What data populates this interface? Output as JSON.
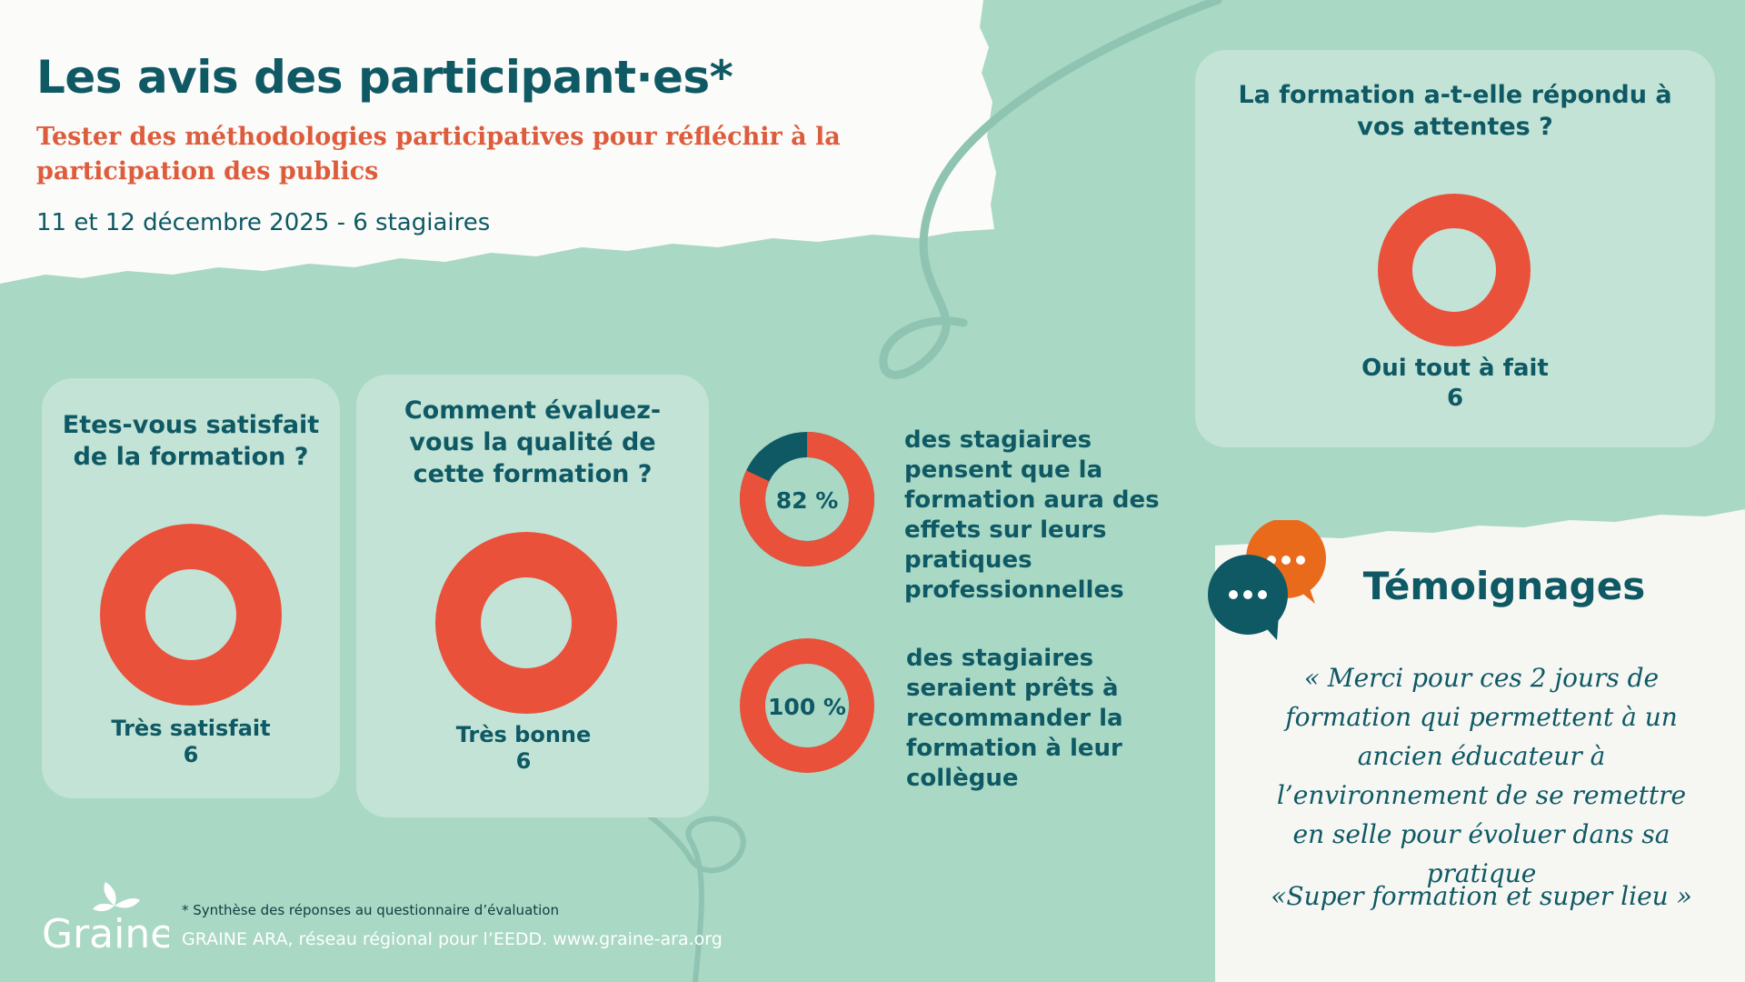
{
  "header": {
    "title": "Les avis des participant·es*",
    "subtitle": "Tester des méthodologies participatives pour réfléchir à la participation des publics",
    "session": "11 et 12 décembre 2025 - 6 stagiaires"
  },
  "chart_data": [
    {
      "type": "pie",
      "title": "Etes-vous satisfait de la formation ?",
      "categories": [
        "Très satisfait"
      ],
      "values": [
        6
      ],
      "colors": [
        "#e9513a"
      ]
    },
    {
      "type": "pie",
      "title": "Comment évaluez-vous la qualité de cette formation ?",
      "categories": [
        "Très bonne"
      ],
      "values": [
        6
      ],
      "colors": [
        "#e9513a"
      ]
    },
    {
      "type": "pie",
      "title": "La formation a-t-elle répondu à vos attentes ?",
      "categories": [
        "Oui tout à fait"
      ],
      "values": [
        6
      ],
      "colors": [
        "#e9513a"
      ]
    },
    {
      "type": "pie",
      "label": "82 %",
      "values": [
        82,
        18
      ],
      "colors": [
        "#e9513a",
        "#0e5964"
      ],
      "caption": "des stagiaires pensent que la formation aura des effets sur leurs pratiques professionnelles"
    },
    {
      "type": "pie",
      "label": "100 %",
      "values": [
        100
      ],
      "colors": [
        "#e9513a"
      ],
      "caption": "des stagiaires seraient prêts à recommander la formation à leur collègue"
    }
  ],
  "testimonials": {
    "title": "Témoignages",
    "quotes": [
      "« Merci pour ces 2 jours de formation qui permettent à un ancien éducateur à l’environnement de se remettre en selle pour évoluer dans sa pratique",
      "«Super formation et super lieu »"
    ],
    "bubble_icons": [
      "speech-bubble-icon",
      "speech-bubble-icon"
    ]
  },
  "footer": {
    "logo_text": "Graine",
    "note": "* Synthèse des réponses au questionnaire d’évaluation",
    "org": "GRAINE ARA, réseau régional pour l’EEDD. www.graine-ara.org"
  },
  "colors": {
    "background": "#a9d8c5",
    "card": "#c2e3d6",
    "accent": "#e9513a",
    "dark": "#0e5964",
    "subtitle": "#dd5c3c"
  }
}
